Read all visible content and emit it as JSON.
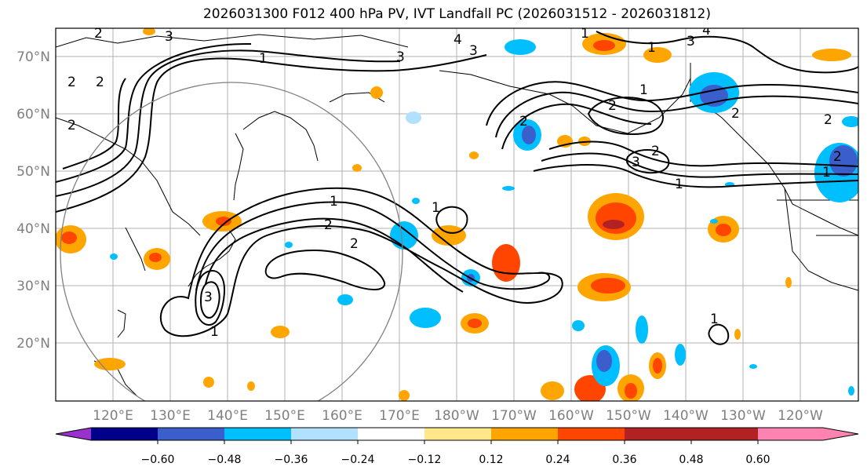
{
  "title": "2026031300 F012 400 hPa PV, IVT Landfall PC (2026031512 - 2026031812)",
  "lat_labels": [
    "70°N",
    "60°N",
    "50°N",
    "40°N",
    "30°N",
    "20°N"
  ],
  "lon_labels": [
    "120°E",
    "130°E",
    "140°E",
    "150°E",
    "160°E",
    "170°E",
    "180°W",
    "170°W",
    "160°W",
    "150°W",
    "140°W",
    "130°W",
    "120°W"
  ],
  "colorbar": {
    "ticks": [
      "−0.60",
      "−0.48",
      "−0.36",
      "−0.24",
      "−0.12",
      "0.12",
      "0.24",
      "0.36",
      "0.48",
      "0.60"
    ],
    "colors": [
      "#9932cc",
      "#00008b",
      "#3a5fcd",
      "#00bfff",
      "#b0e2ff",
      "#ffffff",
      "#ffe78a",
      "#ffa500",
      "#ff4500",
      "#b22222",
      "#ff83b0"
    ]
  },
  "contour_labels": [
    "1",
    "2",
    "3",
    "4"
  ]
}
